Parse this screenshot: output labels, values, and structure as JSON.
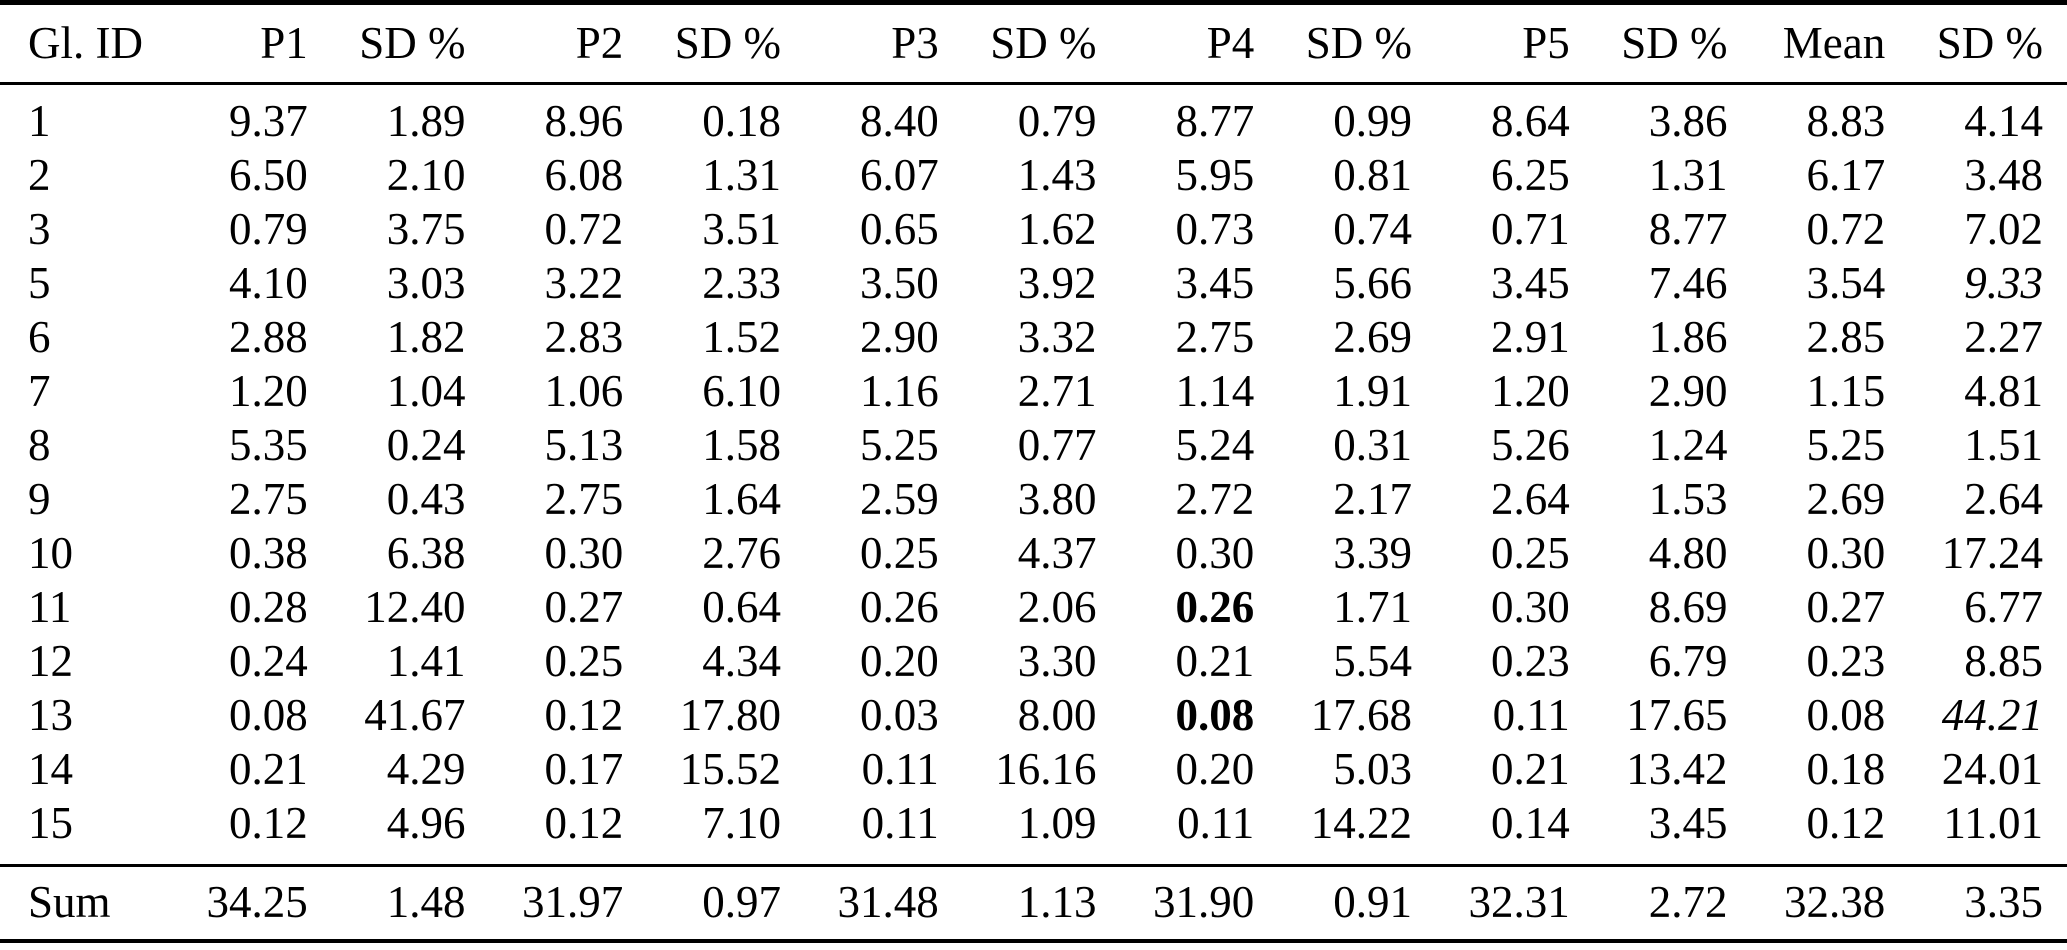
{
  "colors": {
    "text": "#000000",
    "background": "#ffffff",
    "rule": "#000000"
  },
  "table": {
    "columns": [
      "Gl. ID",
      "P1",
      "SD %",
      "P2",
      "SD %",
      "P3",
      "SD %",
      "P4",
      "SD %",
      "P5",
      "SD %",
      "Mean",
      "SD %"
    ],
    "rows": [
      {
        "id": "1",
        "cells": [
          "9.37",
          "1.89",
          "8.96",
          "0.18",
          "8.40",
          "0.79",
          "8.77",
          "0.99",
          "8.64",
          "3.86",
          "8.83",
          "4.14"
        ]
      },
      {
        "id": "2",
        "cells": [
          "6.50",
          "2.10",
          "6.08",
          "1.31",
          "6.07",
          "1.43",
          "5.95",
          "0.81",
          "6.25",
          "1.31",
          "6.17",
          "3.48"
        ]
      },
      {
        "id": "3",
        "cells": [
          "0.79",
          "3.75",
          "0.72",
          "3.51",
          "0.65",
          "1.62",
          "0.73",
          "0.74",
          "0.71",
          "8.77",
          "0.72",
          "7.02"
        ]
      },
      {
        "id": "5",
        "cells": [
          "4.10",
          "3.03",
          "3.22",
          "2.33",
          "3.50",
          "3.92",
          "3.45",
          "5.66",
          "3.45",
          "7.46",
          "3.54",
          "9.33"
        ]
      },
      {
        "id": "6",
        "cells": [
          "2.88",
          "1.82",
          "2.83",
          "1.52",
          "2.90",
          "3.32",
          "2.75",
          "2.69",
          "2.91",
          "1.86",
          "2.85",
          "2.27"
        ]
      },
      {
        "id": "7",
        "cells": [
          "1.20",
          "1.04",
          "1.06",
          "6.10",
          "1.16",
          "2.71",
          "1.14",
          "1.91",
          "1.20",
          "2.90",
          "1.15",
          "4.81"
        ]
      },
      {
        "id": "8",
        "cells": [
          "5.35",
          "0.24",
          "5.13",
          "1.58",
          "5.25",
          "0.77",
          "5.24",
          "0.31",
          "5.26",
          "1.24",
          "5.25",
          "1.51"
        ]
      },
      {
        "id": "9",
        "cells": [
          "2.75",
          "0.43",
          "2.75",
          "1.64",
          "2.59",
          "3.80",
          "2.72",
          "2.17",
          "2.64",
          "1.53",
          "2.69",
          "2.64"
        ]
      },
      {
        "id": "10",
        "cells": [
          "0.38",
          "6.38",
          "0.30",
          "2.76",
          "0.25",
          "4.37",
          "0.30",
          "3.39",
          "0.25",
          "4.80",
          "0.30",
          "17.24"
        ]
      },
      {
        "id": "11",
        "cells": [
          "0.28",
          "12.40",
          "0.27",
          "0.64",
          "0.26",
          "2.06",
          "0.26",
          "1.71",
          "0.30",
          "8.69",
          "0.27",
          "6.77"
        ]
      },
      {
        "id": "12",
        "cells": [
          "0.24",
          "1.41",
          "0.25",
          "4.34",
          "0.20",
          "3.30",
          "0.21",
          "5.54",
          "0.23",
          "6.79",
          "0.23",
          "8.85"
        ]
      },
      {
        "id": "13",
        "cells": [
          "0.08",
          "41.67",
          "0.12",
          "17.80",
          "0.03",
          "8.00",
          "0.08",
          "17.68",
          "0.11",
          "17.65",
          "0.08",
          "44.21"
        ]
      },
      {
        "id": "14",
        "cells": [
          "0.21",
          "4.29",
          "0.17",
          "15.52",
          "0.11",
          "16.16",
          "0.20",
          "5.03",
          "0.21",
          "13.42",
          "0.18",
          "24.01"
        ]
      },
      {
        "id": "15",
        "cells": [
          "0.12",
          "4.96",
          "0.12",
          "7.10",
          "0.11",
          "1.09",
          "0.11",
          "14.22",
          "0.14",
          "3.45",
          "0.12",
          "11.01"
        ]
      }
    ],
    "sum_row": {
      "id": "Sum",
      "cells": [
        "34.25",
        "1.48",
        "31.97",
        "0.97",
        "31.48",
        "1.13",
        "31.90",
        "0.91",
        "32.31",
        "2.72",
        "32.38",
        "3.35"
      ]
    },
    "emphasis": [
      {
        "row": 9,
        "col": 6,
        "style": "bold"
      },
      {
        "row": 11,
        "col": 6,
        "style": "bold"
      },
      {
        "row": 3,
        "col": 11,
        "style": "italic"
      },
      {
        "row": 11,
        "col": 11,
        "style": "italic"
      }
    ]
  }
}
